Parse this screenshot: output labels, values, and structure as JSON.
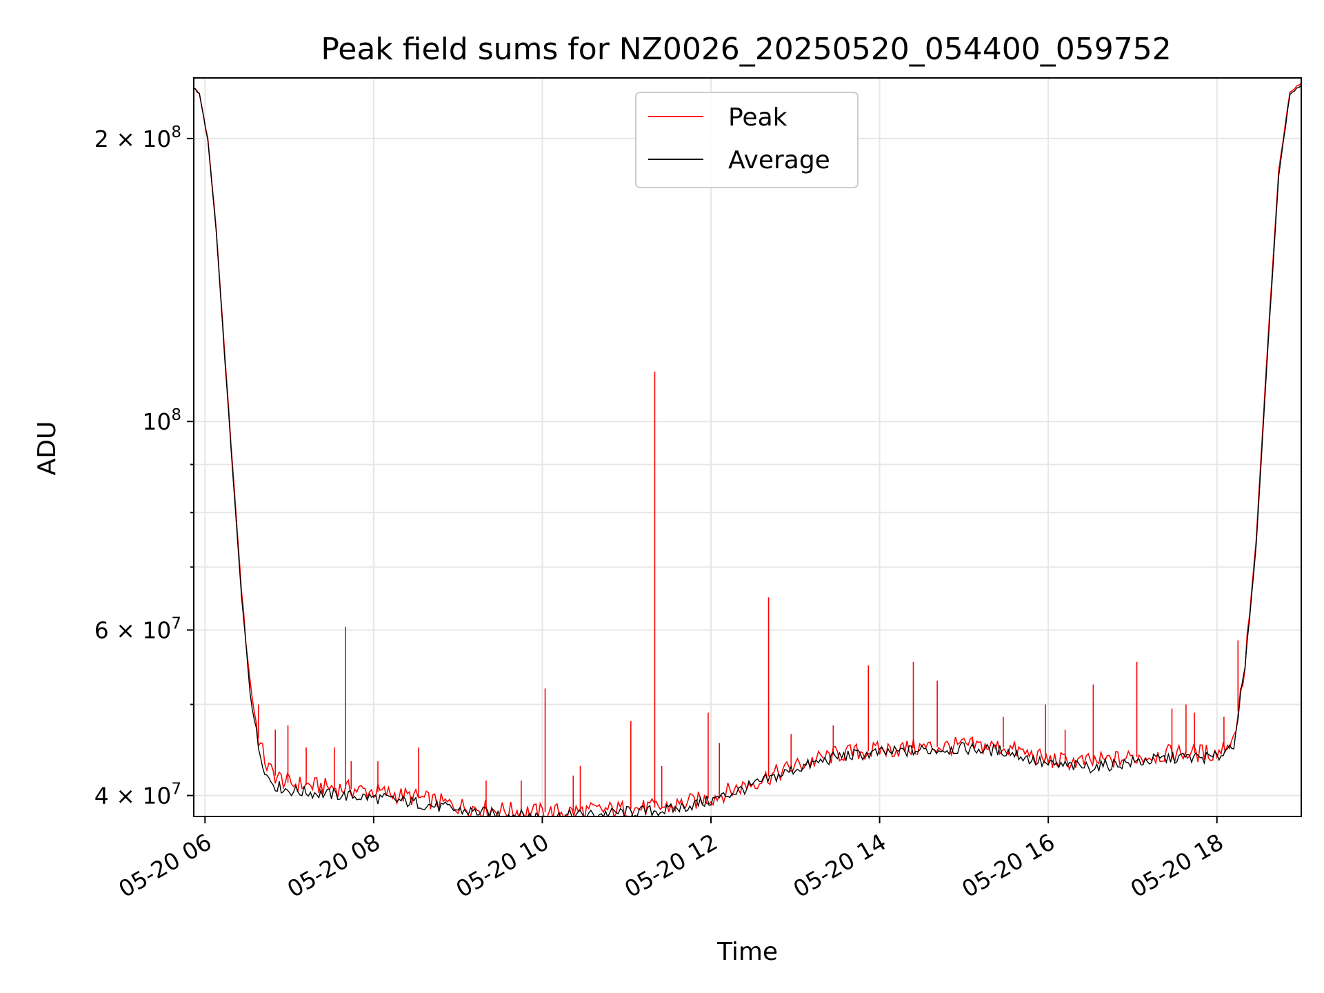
{
  "chart_data": {
    "type": "line",
    "title": "Peak field sums for NZ0026_20250520_054400_059752",
    "xlabel": "Time",
    "ylabel": "ADU",
    "xlim": [
      "2025-05-20 05:52",
      "2025-05-20 19:00"
    ],
    "ylim": [
      38000000,
      232000000
    ],
    "yscale": "log",
    "grid": true,
    "legend_position": "top-center",
    "x_ticks": [
      {
        "t": "2025-05-20 06:00",
        "label": "05-20 06"
      },
      {
        "t": "2025-05-20 08:00",
        "label": "05-20 08"
      },
      {
        "t": "2025-05-20 10:00",
        "label": "05-20 10"
      },
      {
        "t": "2025-05-20 12:00",
        "label": "05-20 12"
      },
      {
        "t": "2025-05-20 14:00",
        "label": "05-20 14"
      },
      {
        "t": "2025-05-20 16:00",
        "label": "05-20 16"
      },
      {
        "t": "2025-05-20 18:00",
        "label": "05-20 18"
      }
    ],
    "y_ticks": [
      {
        "value": 40000000,
        "base": "4",
        "exp": "7"
      },
      {
        "value": 60000000,
        "base": "6",
        "exp": "7"
      },
      {
        "value": 100000000,
        "base": "",
        "exp": "8"
      },
      {
        "value": 200000000,
        "base": "2",
        "exp": "8"
      }
    ],
    "y_minor_ticks": [
      50000000,
      70000000,
      80000000,
      90000000
    ],
    "series": [
      {
        "name": "Peak",
        "color": "#ff0000",
        "points": [
          [
            "2025-05-20 05:50",
            228000000
          ],
          [
            "2025-05-20 05:56",
            223000000
          ],
          [
            "2025-05-20 06:02",
            200000000
          ],
          [
            "2025-05-20 06:08",
            160000000
          ],
          [
            "2025-05-20 06:14",
            118000000
          ],
          [
            "2025-05-20 06:20",
            88000000
          ],
          [
            "2025-05-20 06:26",
            66000000
          ],
          [
            "2025-05-20 06:32",
            53000000
          ],
          [
            "2025-05-20 06:38",
            46000000
          ],
          [
            "2025-05-20 06:44",
            43000000
          ],
          [
            "2025-05-20 06:50",
            42000000
          ],
          [
            "2025-05-20 07:00",
            41200000
          ],
          [
            "2025-05-20 07:30",
            40800000
          ],
          [
            "2025-05-20 08:00",
            40400000
          ],
          [
            "2025-05-20 08:30",
            39800000
          ],
          [
            "2025-05-20 09:00",
            39000000
          ],
          [
            "2025-05-20 09:30",
            38600000
          ],
          [
            "2025-05-20 10:00",
            38400000
          ],
          [
            "2025-05-20 10:30",
            38500000
          ],
          [
            "2025-05-20 11:00",
            38700000
          ],
          [
            "2025-05-20 11:30",
            38900000
          ],
          [
            "2025-05-20 12:00",
            39800000
          ],
          [
            "2025-05-20 12:30",
            41300000
          ],
          [
            "2025-05-20 13:00",
            43000000
          ],
          [
            "2025-05-20 13:30",
            44300000
          ],
          [
            "2025-05-20 14:00",
            44700000
          ],
          [
            "2025-05-20 14:30",
            45000000
          ],
          [
            "2025-05-20 15:00",
            45200000
          ],
          [
            "2025-05-20 15:30",
            45000000
          ],
          [
            "2025-05-20 16:00",
            43600000
          ],
          [
            "2025-05-20 16:30",
            43400000
          ],
          [
            "2025-05-20 17:00",
            43900000
          ],
          [
            "2025-05-20 17:30",
            44400000
          ],
          [
            "2025-05-20 18:00",
            44400000
          ],
          [
            "2025-05-20 18:12",
            46000000
          ],
          [
            "2025-05-20 18:20",
            55000000
          ],
          [
            "2025-05-20 18:28",
            75000000
          ],
          [
            "2025-05-20 18:36",
            120000000
          ],
          [
            "2025-05-20 18:44",
            185000000
          ],
          [
            "2025-05-20 18:52",
            224000000
          ],
          [
            "2025-05-20 19:00",
            229000000
          ]
        ],
        "spikes": [
          [
            "2025-05-20 06:38",
            50000000
          ],
          [
            "2025-05-20 06:50",
            47000000
          ],
          [
            "2025-05-20 06:59",
            47500000
          ],
          [
            "2025-05-20 07:12",
            45000000
          ],
          [
            "2025-05-20 07:32",
            45000000
          ],
          [
            "2025-05-20 07:40",
            60500000
          ],
          [
            "2025-05-20 07:44",
            43500000
          ],
          [
            "2025-05-20 08:03",
            43500000
          ],
          [
            "2025-05-20 08:32",
            45000000
          ],
          [
            "2025-05-20 09:20",
            41500000
          ],
          [
            "2025-05-20 09:45",
            41500000
          ],
          [
            "2025-05-20 10:02",
            52000000
          ],
          [
            "2025-05-20 10:22",
            42000000
          ],
          [
            "2025-05-20 10:27",
            43000000
          ],
          [
            "2025-05-20 11:03",
            48000000
          ],
          [
            "2025-05-20 11:20",
            113000000
          ],
          [
            "2025-05-20 11:25",
            43000000
          ],
          [
            "2025-05-20 11:58",
            49000000
          ],
          [
            "2025-05-20 12:06",
            45500000
          ],
          [
            "2025-05-20 12:41",
            65000000
          ],
          [
            "2025-05-20 12:57",
            46500000
          ],
          [
            "2025-05-20 13:27",
            47500000
          ],
          [
            "2025-05-20 13:52",
            55000000
          ],
          [
            "2025-05-20 14:24",
            55500000
          ],
          [
            "2025-05-20 14:41",
            53000000
          ],
          [
            "2025-05-20 15:06",
            46000000
          ],
          [
            "2025-05-20 15:28",
            48500000
          ],
          [
            "2025-05-20 15:58",
            50000000
          ],
          [
            "2025-05-20 16:12",
            47000000
          ],
          [
            "2025-05-20 16:32",
            52500000
          ],
          [
            "2025-05-20 17:03",
            55500000
          ],
          [
            "2025-05-20 17:28",
            49500000
          ],
          [
            "2025-05-20 17:38",
            50000000
          ],
          [
            "2025-05-20 17:44",
            49000000
          ],
          [
            "2025-05-20 18:05",
            48500000
          ],
          [
            "2025-05-20 18:15",
            58500000
          ]
        ]
      },
      {
        "name": "Average",
        "color": "#000000",
        "points": [
          [
            "2025-05-20 05:50",
            228000000
          ],
          [
            "2025-05-20 05:56",
            223000000
          ],
          [
            "2025-05-20 06:02",
            199000000
          ],
          [
            "2025-05-20 06:08",
            159000000
          ],
          [
            "2025-05-20 06:14",
            117000000
          ],
          [
            "2025-05-20 06:20",
            87000000
          ],
          [
            "2025-05-20 06:26",
            65000000
          ],
          [
            "2025-05-20 06:32",
            52000000
          ],
          [
            "2025-05-20 06:38",
            45000000
          ],
          [
            "2025-05-20 06:44",
            42000000
          ],
          [
            "2025-05-20 06:50",
            41000000
          ],
          [
            "2025-05-20 07:00",
            40500000
          ],
          [
            "2025-05-20 07:30",
            40100000
          ],
          [
            "2025-05-20 08:00",
            39800000
          ],
          [
            "2025-05-20 08:30",
            39300000
          ],
          [
            "2025-05-20 09:00",
            38600000
          ],
          [
            "2025-05-20 09:30",
            38200000
          ],
          [
            "2025-05-20 10:00",
            38000000
          ],
          [
            "2025-05-20 10:30",
            38100000
          ],
          [
            "2025-05-20 11:00",
            38400000
          ],
          [
            "2025-05-20 11:30",
            38600000
          ],
          [
            "2025-05-20 12:00",
            39500000
          ],
          [
            "2025-05-20 12:30",
            41000000
          ],
          [
            "2025-05-20 13:00",
            42700000
          ],
          [
            "2025-05-20 13:30",
            44000000
          ],
          [
            "2025-05-20 14:00",
            44400000
          ],
          [
            "2025-05-20 14:30",
            44700000
          ],
          [
            "2025-05-20 15:00",
            44900000
          ],
          [
            "2025-05-20 15:30",
            44600000
          ],
          [
            "2025-05-20 16:00",
            43100000
          ],
          [
            "2025-05-20 16:30",
            42900000
          ],
          [
            "2025-05-20 17:00",
            43400000
          ],
          [
            "2025-05-20 17:30",
            43900000
          ],
          [
            "2025-05-20 18:00",
            43900000
          ],
          [
            "2025-05-20 18:12",
            45500000
          ],
          [
            "2025-05-20 18:20",
            54500000
          ],
          [
            "2025-05-20 18:28",
            74000000
          ],
          [
            "2025-05-20 18:36",
            118000000
          ],
          [
            "2025-05-20 18:44",
            183000000
          ],
          [
            "2025-05-20 18:52",
            223000000
          ],
          [
            "2025-05-20 19:00",
            228000000
          ]
        ]
      }
    ]
  }
}
